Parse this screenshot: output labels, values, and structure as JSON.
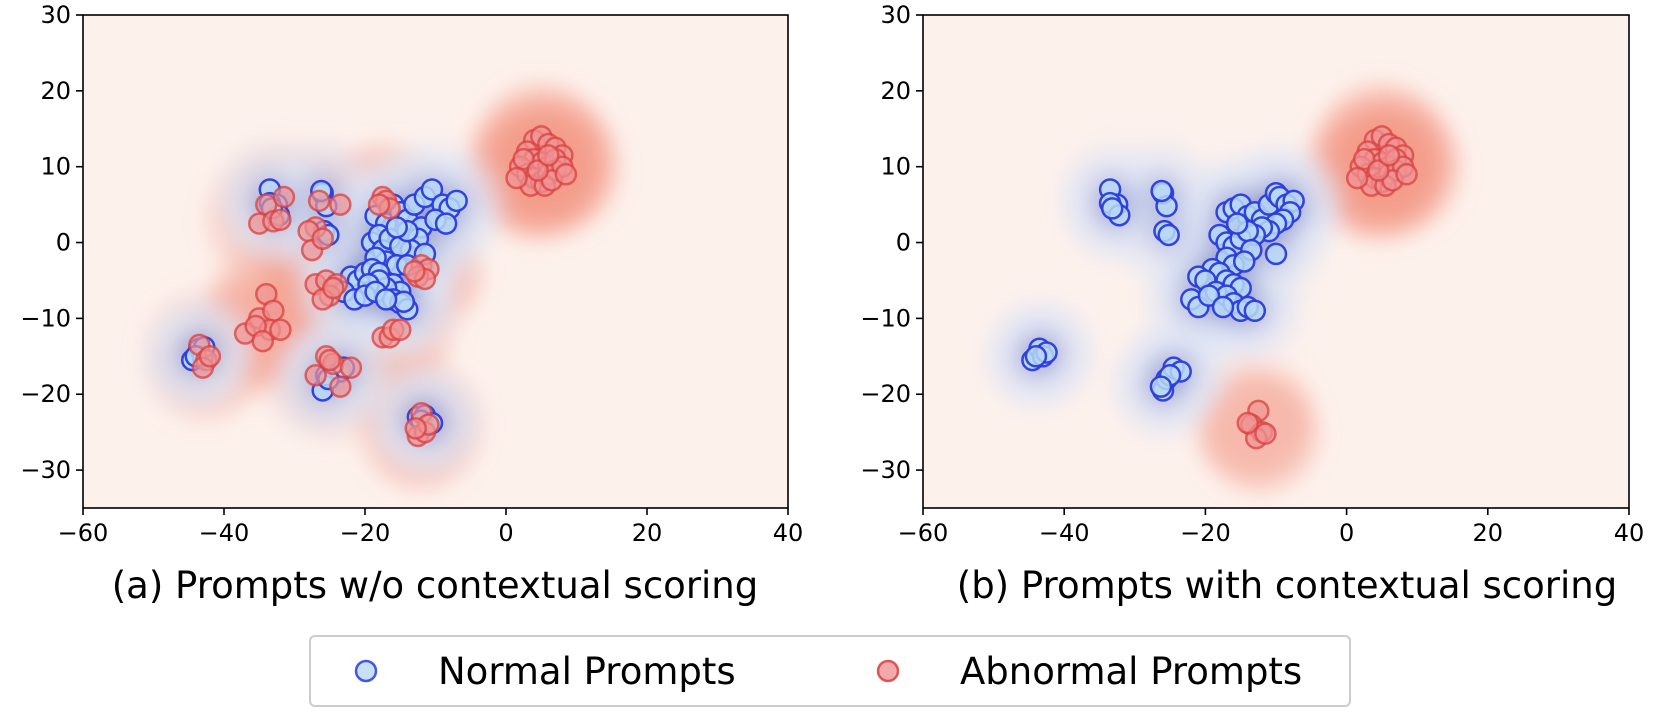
{
  "chart_data": [
    {
      "type": "scatter",
      "caption": "(a) Prompts w/o contextual scoring",
      "xlim": [
        -60,
        40
      ],
      "ylim": [
        -35,
        30
      ],
      "xticks": [
        -60,
        -40,
        -20,
        0,
        20,
        40
      ],
      "yticks": [
        -30,
        -20,
        -10,
        0,
        10,
        20,
        30
      ],
      "xtick_labels": [
        "−60",
        "−40",
        "−20",
        "0",
        "20",
        "40"
      ],
      "ytick_labels": [
        "−30",
        "−20",
        "−10",
        "0",
        "10",
        "20",
        "30"
      ],
      "background_density": "kde",
      "series": [
        {
          "name": "Normal Prompts",
          "color": "#2b3bdc",
          "fill": "#b8d8f4",
          "points": [
            [
              -33.5,
              7
            ],
            [
              -32.5,
              5
            ],
            [
              -33.5,
              5.2
            ],
            [
              -32.2,
              3.6
            ],
            [
              -33.2,
              4.5
            ],
            [
              -26,
              6.5
            ],
            [
              -25.5,
              4.8
            ],
            [
              -25.8,
              1.5
            ],
            [
              -25.2,
              1.0
            ],
            [
              -26.2,
              6.8
            ],
            [
              -18.5,
              3.5
            ],
            [
              -17,
              2.5
            ],
            [
              -16,
              5
            ],
            [
              -15,
              4
            ],
            [
              -14,
              3
            ],
            [
              -13,
              5
            ],
            [
              -12,
              2
            ],
            [
              -11.5,
              6
            ],
            [
              -10.5,
              7
            ],
            [
              -9,
              5
            ],
            [
              -8,
              4.5
            ],
            [
              -10,
              3
            ],
            [
              -7,
              5.5
            ],
            [
              -8.5,
              2.5
            ],
            [
              -12.5,
              0.5
            ],
            [
              -13.5,
              -1
            ],
            [
              -19,
              0
            ],
            [
              -18,
              1
            ],
            [
              -17.5,
              -1
            ],
            [
              -16.5,
              0.5
            ],
            [
              -15,
              -0.5
            ],
            [
              -14,
              1.5
            ],
            [
              -15.5,
              2
            ],
            [
              -17,
              -2.5
            ],
            [
              -15.5,
              -3
            ],
            [
              -14,
              -3
            ],
            [
              -11.5,
              -1.5
            ],
            [
              -18.5,
              -2
            ],
            [
              -22,
              -4.5
            ],
            [
              -21,
              -5
            ],
            [
              -20,
              -4
            ],
            [
              -19,
              -3.5
            ],
            [
              -18,
              -4
            ],
            [
              -16,
              -5.5
            ],
            [
              -15,
              -6.5
            ],
            [
              -17,
              -6
            ],
            [
              -18,
              -5
            ],
            [
              -19.5,
              -5.5
            ],
            [
              -23,
              -6.5
            ],
            [
              -21.5,
              -7.5
            ],
            [
              -20,
              -7
            ],
            [
              -18.5,
              -6.5
            ],
            [
              -16,
              -7.5
            ],
            [
              -15,
              -8
            ],
            [
              -14,
              -8.8
            ],
            [
              -14.5,
              -7.8
            ],
            [
              -17,
              -7.5
            ],
            [
              -44.5,
              -15.5
            ],
            [
              -43.5,
              -14
            ],
            [
              -43,
              -15
            ],
            [
              -42.8,
              -13.8
            ],
            [
              -44,
              -15
            ],
            [
              -26,
              -19.5
            ],
            [
              -25.5,
              -17.5
            ],
            [
              -24.5,
              -16.5
            ],
            [
              -23.5,
              -17
            ],
            [
              -23,
              -16.5
            ],
            [
              -25.2,
              -18
            ],
            [
              -12.5,
              -23
            ],
            [
              -11.5,
              -22.8
            ],
            [
              -11,
              -24
            ],
            [
              -12,
              -23.5
            ],
            [
              -10.5,
              -23.8
            ]
          ]
        },
        {
          "name": "Abnormal Prompts",
          "color": "#d94040",
          "fill": "#ef9494",
          "points": [
            [
              4,
              13.5
            ],
            [
              5,
              14
            ],
            [
              6,
              13
            ],
            [
              7,
              12.5
            ],
            [
              3,
              12
            ],
            [
              8,
              11.5
            ],
            [
              4,
              11
            ],
            [
              5,
              10.5
            ],
            [
              6,
              10
            ],
            [
              7,
              11
            ],
            [
              2,
              10
            ],
            [
              3,
              9
            ],
            [
              4,
              8.5
            ],
            [
              5,
              8
            ],
            [
              6,
              9
            ],
            [
              7,
              9.5
            ],
            [
              8,
              10
            ],
            [
              2.5,
              11
            ],
            [
              3.5,
              7.5
            ],
            [
              5.5,
              7.5
            ],
            [
              6.5,
              8.2
            ],
            [
              8.5,
              9
            ],
            [
              1.5,
              8.5
            ],
            [
              4.5,
              9.5
            ],
            [
              6,
              11.5
            ],
            [
              -34,
              5
            ],
            [
              -35,
              2.5
            ],
            [
              -33,
              2.8
            ],
            [
              -31.5,
              6
            ],
            [
              -32,
              3
            ],
            [
              -26.5,
              5.5
            ],
            [
              -27,
              2
            ],
            [
              -28,
              1.5
            ],
            [
              -27.5,
              -1
            ],
            [
              -26,
              0.5
            ],
            [
              -23.5,
              5
            ],
            [
              -17.5,
              6
            ],
            [
              -17,
              5.5
            ],
            [
              -16.5,
              4.5
            ],
            [
              -18,
              5
            ],
            [
              -12,
              -3
            ],
            [
              -11,
              -3.5
            ],
            [
              -12.5,
              -4.5
            ],
            [
              -11.5,
              -4.8
            ],
            [
              -13,
              -3.8
            ],
            [
              -27,
              -5.5
            ],
            [
              -25.5,
              -5
            ],
            [
              -24,
              -5.5
            ],
            [
              -25,
              -7
            ],
            [
              -26,
              -7.5
            ],
            [
              -24.5,
              -6
            ],
            [
              -37,
              -12
            ],
            [
              -35,
              -10
            ],
            [
              -34,
              -6.8
            ],
            [
              -33,
              -9
            ],
            [
              -33.5,
              -11.5
            ],
            [
              -32,
              -11.5
            ],
            [
              -35.5,
              -11
            ],
            [
              -34.5,
              -13
            ],
            [
              -17.5,
              -12.5
            ],
            [
              -16.5,
              -12.5
            ],
            [
              -16,
              -11.5
            ],
            [
              -15,
              -11.5
            ],
            [
              -43.5,
              -13.5
            ],
            [
              -42.5,
              -15.5
            ],
            [
              -43,
              -16.5
            ],
            [
              -42,
              -15
            ],
            [
              -27,
              -17.5
            ],
            [
              -25.5,
              -15
            ],
            [
              -24.5,
              -16
            ],
            [
              -22,
              -16.5
            ],
            [
              -23.5,
              -19
            ],
            [
              -25,
              -15.5
            ],
            [
              -12.5,
              -25.5
            ],
            [
              -11.5,
              -25
            ],
            [
              -12,
              -22.5
            ],
            [
              -11,
              -24
            ],
            [
              -12.8,
              -24.5
            ]
          ]
        }
      ]
    },
    {
      "type": "scatter",
      "caption": "(b) Prompts with contextual scoring",
      "xlim": [
        -60,
        40
      ],
      "ylim": [
        -35,
        30
      ],
      "xticks": [
        -60,
        -40,
        -20,
        0,
        20,
        40
      ],
      "yticks": [
        -30,
        -20,
        -10,
        0,
        10,
        20,
        30
      ],
      "xtick_labels": [
        "−60",
        "−40",
        "−20",
        "0",
        "20",
        "40"
      ],
      "ytick_labels": [
        "−30",
        "−20",
        "−10",
        "0",
        "10",
        "20",
        "30"
      ],
      "background_density": "kde",
      "series": [
        {
          "name": "Normal Prompts",
          "color": "#2b3bdc",
          "fill": "#b8d8f4",
          "points": [
            [
              -33.5,
              7
            ],
            [
              -32.5,
              5
            ],
            [
              -33.5,
              5.2
            ],
            [
              -32.2,
              3.6
            ],
            [
              -33.2,
              4.5
            ],
            [
              -26,
              6.5
            ],
            [
              -25.5,
              4.8
            ],
            [
              -25.8,
              1.5
            ],
            [
              -25.2,
              1.0
            ],
            [
              -26.2,
              6.8
            ],
            [
              -17,
              4
            ],
            [
              -16,
              4.5
            ],
            [
              -15,
              5
            ],
            [
              -14,
              3.5
            ],
            [
              -13,
              4
            ],
            [
              -12,
              3
            ],
            [
              -11,
              5
            ],
            [
              -10,
              6.5
            ],
            [
              -9.5,
              6
            ],
            [
              -8.5,
              5
            ],
            [
              -7.5,
              5.5
            ],
            [
              -8,
              4
            ],
            [
              -9,
              3
            ],
            [
              -10,
              2.5
            ],
            [
              -11,
              1.5
            ],
            [
              -12,
              2
            ],
            [
              -13,
              1
            ],
            [
              -10,
              -1.5
            ],
            [
              -18,
              1
            ],
            [
              -17,
              0
            ],
            [
              -16,
              -0.5
            ],
            [
              -15,
              0.5
            ],
            [
              -14,
              1.5
            ],
            [
              -15.5,
              2.5
            ],
            [
              -13.5,
              -1
            ],
            [
              -17,
              -2
            ],
            [
              -16,
              -3
            ],
            [
              -14.5,
              -2.5
            ],
            [
              -19,
              -3.5
            ],
            [
              -18,
              -4
            ],
            [
              -17,
              -5
            ],
            [
              -16,
              -5.5
            ],
            [
              -15,
              -6
            ],
            [
              -21,
              -4.5
            ],
            [
              -20,
              -5
            ],
            [
              -18.5,
              -6.5
            ],
            [
              -17,
              -7
            ],
            [
              -16,
              -8
            ],
            [
              -22,
              -7.5
            ],
            [
              -21,
              -8.5
            ],
            [
              -19.5,
              -7
            ],
            [
              -15,
              -9
            ],
            [
              -14,
              -8.5
            ],
            [
              -13,
              -9
            ],
            [
              -17.5,
              -8.5
            ],
            [
              -44.5,
              -15.5
            ],
            [
              -43.5,
              -14
            ],
            [
              -43,
              -15
            ],
            [
              -42.5,
              -14.5
            ],
            [
              -44,
              -15
            ],
            [
              -26,
              -19.5
            ],
            [
              -25.5,
              -18
            ],
            [
              -24.5,
              -16.5
            ],
            [
              -23.5,
              -17
            ],
            [
              -25,
              -17.5
            ],
            [
              -26.3,
              -19
            ]
          ]
        },
        {
          "name": "Abnormal Prompts",
          "color": "#d94040",
          "fill": "#ef9494",
          "points": [
            [
              4,
              13.5
            ],
            [
              5,
              14
            ],
            [
              6,
              13
            ],
            [
              7,
              12.5
            ],
            [
              3,
              12
            ],
            [
              8,
              11.5
            ],
            [
              4,
              11
            ],
            [
              5,
              10.5
            ],
            [
              6,
              10
            ],
            [
              7,
              11
            ],
            [
              2,
              10
            ],
            [
              3,
              9
            ],
            [
              4,
              8.5
            ],
            [
              5,
              8
            ],
            [
              6,
              9
            ],
            [
              7,
              9.5
            ],
            [
              8,
              10
            ],
            [
              2.5,
              11
            ],
            [
              3.5,
              7.5
            ],
            [
              5.5,
              7.5
            ],
            [
              6.5,
              8.2
            ],
            [
              8.5,
              9
            ],
            [
              1.5,
              8.5
            ],
            [
              4.5,
              9.5
            ],
            [
              6,
              11.5
            ],
            [
              -12.5,
              -22.2
            ],
            [
              -13.5,
              -24
            ],
            [
              -12,
              -25
            ],
            [
              -12.8,
              -25.8
            ],
            [
              -14,
              -23.8
            ],
            [
              -11.5,
              -25.2
            ]
          ]
        }
      ]
    }
  ],
  "legend": {
    "placement": "bottom-center",
    "items": [
      {
        "label": "Normal Prompts",
        "color": "#2b3bdc",
        "fill": "#b8d8f4"
      },
      {
        "label": "Abnormal Prompts",
        "color": "#d94040",
        "fill": "#ef9494"
      }
    ]
  }
}
